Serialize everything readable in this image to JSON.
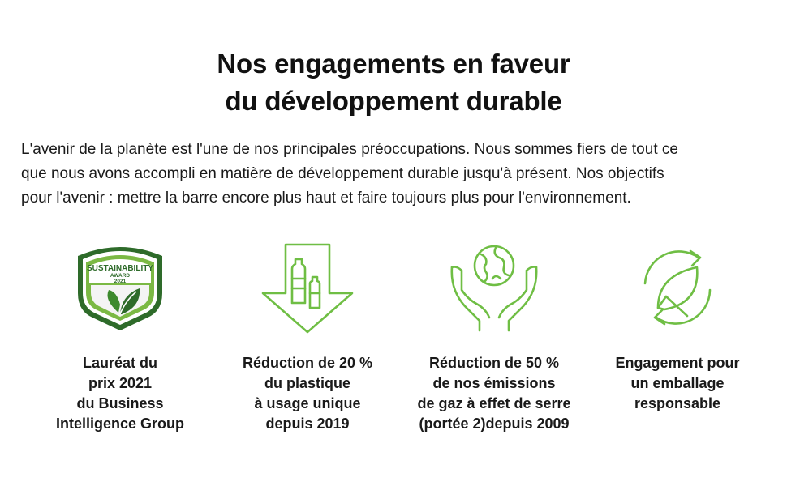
{
  "header": {
    "title_line1": "Nos engagements en faveur",
    "title_line2": "du développement durable"
  },
  "intro": {
    "line1": "L'avenir de la planète est l'une de nos principales préoccupations. Nous sommes fiers de tout ce",
    "line2": "que nous avons accompli en matière de développement durable jusqu'à présent. Nos objectifs",
    "line3": "pour l'avenir : mettre la barre encore plus haut et faire toujours plus pour l'environnement."
  },
  "colors": {
    "accent": "#6fbe44",
    "badge_dark": "#2e6b2a",
    "badge_light": "#7bb944"
  },
  "features": [
    {
      "icon": "sustainability-award-badge-icon",
      "badge_text": "SUSTAINABILITY",
      "badge_sub": "AWARD",
      "badge_year": "2021",
      "lines": [
        "Lauréat du",
        "prix 2021",
        "du Business",
        "Intelligence Group"
      ]
    },
    {
      "icon": "plastic-reduction-arrow-icon",
      "lines": [
        "Réduction de 20 %",
        "du plastique",
        "à usage unique",
        "depuis 2019"
      ]
    },
    {
      "icon": "hands-globe-icon",
      "lines": [
        "Réduction de 50 %",
        "de nos émissions",
        "de gaz à effet de serre",
        "(portée 2)depuis 2009"
      ]
    },
    {
      "icon": "recycle-leaf-icon",
      "lines": [
        "Engagement pour",
        "un emballage",
        "responsable"
      ]
    }
  ]
}
